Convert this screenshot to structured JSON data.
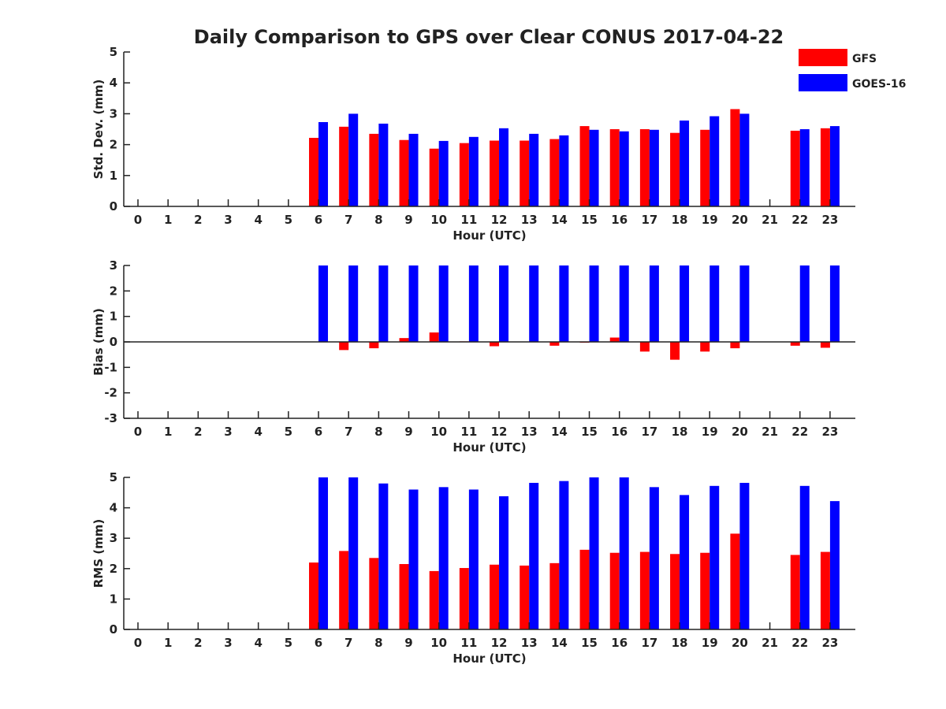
{
  "figure": {
    "title": "Daily Comparison to GPS over Clear CONUS 2017-04-22",
    "legend": [
      {
        "name": "GFS",
        "color": "#ff0000"
      },
      {
        "name": "GOES-16",
        "color": "#0000ff"
      }
    ]
  },
  "chart_data": [
    {
      "type": "bar",
      "panel": "std_dev",
      "title": "Daily Comparison to GPS over Clear CONUS 2017-04-22",
      "xlabel": "Hour (UTC)",
      "ylabel": "Std. Dev. (mm)",
      "categories": [
        "0",
        "1",
        "2",
        "3",
        "4",
        "5",
        "6",
        "7",
        "8",
        "9",
        "10",
        "11",
        "12",
        "13",
        "14",
        "15",
        "16",
        "17",
        "18",
        "19",
        "20",
        "21",
        "22",
        "23"
      ],
      "ylim": [
        0,
        5
      ],
      "yticks": [
        0,
        1,
        2,
        3,
        4,
        5
      ],
      "grid": false,
      "legend_position": "top-right",
      "series": [
        {
          "name": "GFS",
          "color": "#ff0000",
          "values": [
            null,
            null,
            null,
            null,
            null,
            null,
            2.22,
            2.58,
            2.35,
            2.15,
            1.87,
            2.05,
            2.13,
            2.13,
            2.18,
            2.6,
            2.5,
            2.5,
            2.38,
            2.48,
            3.15,
            null,
            2.45,
            2.53
          ]
        },
        {
          "name": "GOES-16",
          "color": "#0000ff",
          "values": [
            null,
            null,
            null,
            null,
            null,
            null,
            2.73,
            3.0,
            2.68,
            2.35,
            2.12,
            2.25,
            2.53,
            2.35,
            2.3,
            2.48,
            2.43,
            2.48,
            2.78,
            2.92,
            3.0,
            null,
            2.5,
            2.6
          ]
        }
      ]
    },
    {
      "type": "bar",
      "panel": "bias",
      "xlabel": "Hour (UTC)",
      "ylabel": "Bias (mm)",
      "categories": [
        "0",
        "1",
        "2",
        "3",
        "4",
        "5",
        "6",
        "7",
        "8",
        "9",
        "10",
        "11",
        "12",
        "13",
        "14",
        "15",
        "16",
        "17",
        "18",
        "19",
        "20",
        "21",
        "22",
        "23"
      ],
      "ylim": [
        -3,
        3
      ],
      "yticks": [
        -3,
        -2,
        -1,
        0,
        1,
        2,
        3
      ],
      "grid": false,
      "series": [
        {
          "name": "GFS",
          "color": "#ff0000",
          "values": [
            null,
            null,
            null,
            null,
            null,
            null,
            0.0,
            -0.32,
            -0.25,
            0.15,
            0.37,
            0.02,
            -0.17,
            0.0,
            -0.15,
            -0.03,
            0.17,
            -0.38,
            -0.7,
            -0.38,
            -0.25,
            null,
            -0.15,
            -0.23
          ]
        },
        {
          "name": "GOES-16",
          "color": "#0000ff",
          "values": [
            null,
            null,
            null,
            null,
            null,
            null,
            3.0,
            3.0,
            3.0,
            3.0,
            3.0,
            3.0,
            3.0,
            3.0,
            3.0,
            3.0,
            3.0,
            3.0,
            3.0,
            3.0,
            3.0,
            null,
            3.0,
            3.0
          ]
        }
      ]
    },
    {
      "type": "bar",
      "panel": "rms",
      "xlabel": "Hour (UTC)",
      "ylabel": "RMS (mm)",
      "categories": [
        "0",
        "1",
        "2",
        "3",
        "4",
        "5",
        "6",
        "7",
        "8",
        "9",
        "10",
        "11",
        "12",
        "13",
        "14",
        "15",
        "16",
        "17",
        "18",
        "19",
        "20",
        "21",
        "22",
        "23"
      ],
      "ylim": [
        0,
        5
      ],
      "yticks": [
        0,
        1,
        2,
        3,
        4,
        5
      ],
      "grid": false,
      "series": [
        {
          "name": "GFS",
          "color": "#ff0000",
          "values": [
            null,
            null,
            null,
            null,
            null,
            null,
            2.2,
            2.58,
            2.35,
            2.15,
            1.92,
            2.02,
            2.13,
            2.1,
            2.18,
            2.62,
            2.52,
            2.55,
            2.48,
            2.52,
            3.15,
            null,
            2.45,
            2.55
          ]
        },
        {
          "name": "GOES-16",
          "color": "#0000ff",
          "values": [
            null,
            null,
            null,
            null,
            null,
            null,
            5.0,
            5.0,
            4.8,
            4.6,
            4.68,
            4.6,
            4.38,
            4.82,
            4.88,
            5.0,
            5.0,
            4.68,
            4.42,
            4.72,
            4.82,
            null,
            4.72,
            4.22
          ]
        }
      ]
    }
  ]
}
